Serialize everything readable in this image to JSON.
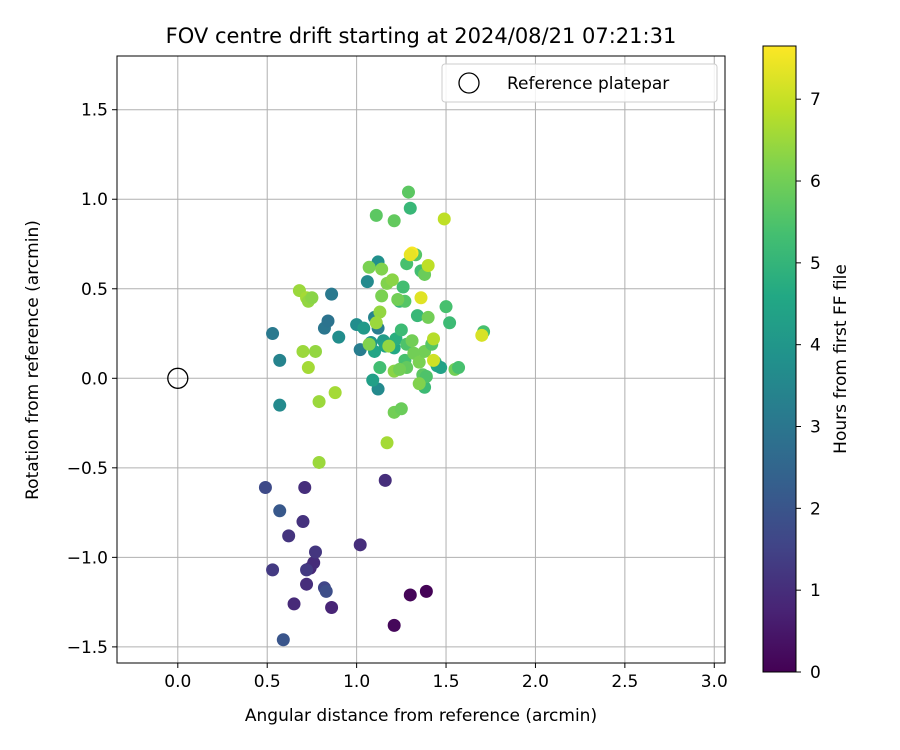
{
  "chart_data": {
    "type": "scatter",
    "title": "FOV centre drift starting at 2024/08/21 07:21:31",
    "xlabel": "Angular distance from reference (arcmin)",
    "ylabel": "Rotation from reference (arcmin)",
    "xlim": [
      -0.34,
      3.06
    ],
    "ylim": [
      -1.59,
      1.8
    ],
    "xticks": [
      0.0,
      0.5,
      1.0,
      1.5,
      2.0,
      2.5,
      3.0
    ],
    "xtick_labels": [
      "0.0",
      "0.5",
      "1.0",
      "1.5",
      "2.0",
      "2.5",
      "3.0"
    ],
    "yticks": [
      -1.5,
      -1.0,
      -0.5,
      0.0,
      0.5,
      1.0,
      1.5
    ],
    "ytick_labels": [
      "−1.5",
      "−1.0",
      "−0.5",
      "0.0",
      "0.5",
      "1.0",
      "1.5"
    ],
    "grid": true,
    "legend": {
      "position": "top-right",
      "entries": [
        "Reference platepar"
      ]
    },
    "reference": {
      "x": 0.0,
      "y": 0.0,
      "label": "Reference platepar"
    },
    "colorbar": {
      "label": "Hours from first FF file",
      "colormap": "viridis",
      "range": [
        0,
        7.65
      ],
      "ticks": [
        0,
        1,
        2,
        3,
        4,
        5,
        6,
        7
      ],
      "tick_labels": [
        "0",
        "1",
        "2",
        "3",
        "4",
        "5",
        "6",
        "7"
      ]
    },
    "points": [
      {
        "x": 1.39,
        "y": -1.19,
        "c": 0.05
      },
      {
        "x": 1.3,
        "y": -1.21,
        "c": 0.1
      },
      {
        "x": 1.21,
        "y": -1.38,
        "c": 0.15
      },
      {
        "x": 0.86,
        "y": -1.28,
        "c": 0.8
      },
      {
        "x": 0.65,
        "y": -1.26,
        "c": 0.9
      },
      {
        "x": 0.72,
        "y": -1.15,
        "c": 1.0
      },
      {
        "x": 0.74,
        "y": -1.06,
        "c": 0.85
      },
      {
        "x": 0.76,
        "y": -1.03,
        "c": 0.95
      },
      {
        "x": 0.77,
        "y": -0.97,
        "c": 1.2
      },
      {
        "x": 0.82,
        "y": -1.17,
        "c": 1.6
      },
      {
        "x": 0.83,
        "y": -1.19,
        "c": 1.8
      },
      {
        "x": 0.59,
        "y": -1.46,
        "c": 2.0
      },
      {
        "x": 1.02,
        "y": -0.93,
        "c": 1.0
      },
      {
        "x": 1.16,
        "y": -0.57,
        "c": 1.0
      },
      {
        "x": 0.71,
        "y": -0.61,
        "c": 1.0
      },
      {
        "x": 0.7,
        "y": -0.8,
        "c": 1.1
      },
      {
        "x": 0.62,
        "y": -0.88,
        "c": 1.15
      },
      {
        "x": 0.49,
        "y": -0.61,
        "c": 1.7
      },
      {
        "x": 0.57,
        "y": -0.74,
        "c": 2.1
      },
      {
        "x": 0.53,
        "y": -1.07,
        "c": 1.3
      },
      {
        "x": 0.72,
        "y": -1.07,
        "c": 1.3
      },
      {
        "x": 0.53,
        "y": 0.25,
        "c": 3.1
      },
      {
        "x": 0.57,
        "y": -0.15,
        "c": 3.6
      },
      {
        "x": 0.57,
        "y": 0.1,
        "c": 3.4
      },
      {
        "x": 0.82,
        "y": 0.28,
        "c": 3.0
      },
      {
        "x": 0.84,
        "y": 0.32,
        "c": 2.9
      },
      {
        "x": 0.86,
        "y": 0.47,
        "c": 3.1
      },
      {
        "x": 0.9,
        "y": 0.23,
        "c": 3.7
      },
      {
        "x": 1.0,
        "y": 0.3,
        "c": 3.7
      },
      {
        "x": 1.02,
        "y": 0.16,
        "c": 3.2
      },
      {
        "x": 1.06,
        "y": 0.54,
        "c": 3.6
      },
      {
        "x": 1.1,
        "y": 0.34,
        "c": 3.4
      },
      {
        "x": 1.12,
        "y": 0.28,
        "c": 3.2
      },
      {
        "x": 1.12,
        "y": 0.65,
        "c": 3.8
      },
      {
        "x": 1.12,
        "y": -0.06,
        "c": 3.6
      },
      {
        "x": 1.09,
        "y": -0.01,
        "c": 4.3
      },
      {
        "x": 1.08,
        "y": 0.2,
        "c": 4.0
      },
      {
        "x": 1.1,
        "y": 0.15,
        "c": 4.5
      },
      {
        "x": 1.13,
        "y": 0.06,
        "c": 5.3
      },
      {
        "x": 1.04,
        "y": 0.28,
        "c": 4.1
      },
      {
        "x": 1.15,
        "y": 0.21,
        "c": 4.2
      },
      {
        "x": 1.16,
        "y": 0.18,
        "c": 4.4
      },
      {
        "x": 1.21,
        "y": 0.17,
        "c": 4.6
      },
      {
        "x": 1.22,
        "y": 0.22,
        "c": 4.8
      },
      {
        "x": 1.24,
        "y": 0.43,
        "c": 5.0
      },
      {
        "x": 1.25,
        "y": 0.27,
        "c": 5.2
      },
      {
        "x": 1.26,
        "y": 0.51,
        "c": 5.3
      },
      {
        "x": 1.27,
        "y": 0.1,
        "c": 5.4
      },
      {
        "x": 1.27,
        "y": 0.43,
        "c": 5.6
      },
      {
        "x": 1.28,
        "y": 0.06,
        "c": 5.8
      },
      {
        "x": 1.28,
        "y": 0.19,
        "c": 5.5
      },
      {
        "x": 1.29,
        "y": 1.04,
        "c": 5.7
      },
      {
        "x": 1.3,
        "y": 0.95,
        "c": 5.1
      },
      {
        "x": 1.28,
        "y": 0.64,
        "c": 5.4
      },
      {
        "x": 1.31,
        "y": 0.21,
        "c": 6.0
      },
      {
        "x": 1.32,
        "y": 0.14,
        "c": 6.0
      },
      {
        "x": 1.33,
        "y": 0.69,
        "c": 5.6
      },
      {
        "x": 1.34,
        "y": 0.35,
        "c": 5.1
      },
      {
        "x": 1.35,
        "y": 0.09,
        "c": 6.1
      },
      {
        "x": 1.36,
        "y": 0.6,
        "c": 5.3
      },
      {
        "x": 1.37,
        "y": 0.02,
        "c": 5.7
      },
      {
        "x": 1.38,
        "y": 0.15,
        "c": 6.0
      },
      {
        "x": 1.38,
        "y": 0.58,
        "c": 5.9
      },
      {
        "x": 1.38,
        "y": -0.05,
        "c": 5.2
      },
      {
        "x": 1.39,
        "y": 0.01,
        "c": 5.5
      },
      {
        "x": 1.4,
        "y": 0.34,
        "c": 6.0
      },
      {
        "x": 1.42,
        "y": 0.19,
        "c": 5.6
      },
      {
        "x": 1.44,
        "y": 0.09,
        "c": 5.3
      },
      {
        "x": 1.45,
        "y": 0.07,
        "c": 4.6
      },
      {
        "x": 1.47,
        "y": 0.06,
        "c": 4.4
      },
      {
        "x": 1.5,
        "y": 0.4,
        "c": 5.4
      },
      {
        "x": 1.52,
        "y": 0.31,
        "c": 5.2
      },
      {
        "x": 1.55,
        "y": 0.05,
        "c": 6.0
      },
      {
        "x": 1.57,
        "y": 0.06,
        "c": 5.4
      },
      {
        "x": 1.71,
        "y": 0.26,
        "c": 5.4
      },
      {
        "x": 1.11,
        "y": 0.91,
        "c": 5.7
      },
      {
        "x": 1.21,
        "y": 0.88,
        "c": 5.8
      },
      {
        "x": 1.07,
        "y": 0.62,
        "c": 6.1
      },
      {
        "x": 1.14,
        "y": 0.61,
        "c": 6.2
      },
      {
        "x": 1.17,
        "y": 0.53,
        "c": 6.2
      },
      {
        "x": 1.2,
        "y": 0.55,
        "c": 6.3
      },
      {
        "x": 1.23,
        "y": 0.44,
        "c": 6.0
      },
      {
        "x": 1.14,
        "y": 0.46,
        "c": 6.1
      },
      {
        "x": 1.13,
        "y": 0.37,
        "c": 6.4
      },
      {
        "x": 1.11,
        "y": 0.31,
        "c": 6.5
      },
      {
        "x": 1.07,
        "y": 0.19,
        "c": 6.2
      },
      {
        "x": 1.18,
        "y": 0.18,
        "c": 6.4
      },
      {
        "x": 1.21,
        "y": 0.04,
        "c": 6.3
      },
      {
        "x": 1.24,
        "y": 0.05,
        "c": 6.0
      },
      {
        "x": 1.21,
        "y": -0.19,
        "c": 6.0
      },
      {
        "x": 1.25,
        "y": -0.17,
        "c": 5.9
      },
      {
        "x": 1.35,
        "y": -0.03,
        "c": 6.2
      },
      {
        "x": 1.43,
        "y": 0.22,
        "c": 6.8
      },
      {
        "x": 1.4,
        "y": 0.63,
        "c": 6.9
      },
      {
        "x": 1.36,
        "y": 0.45,
        "c": 7.3
      },
      {
        "x": 1.31,
        "y": 0.7,
        "c": 7.6
      },
      {
        "x": 1.3,
        "y": 0.69,
        "c": 7.4
      },
      {
        "x": 1.43,
        "y": 0.1,
        "c": 7.1
      },
      {
        "x": 1.49,
        "y": 0.89,
        "c": 6.9
      },
      {
        "x": 1.7,
        "y": 0.24,
        "c": 7.2
      },
      {
        "x": 0.68,
        "y": 0.49,
        "c": 6.5
      },
      {
        "x": 0.72,
        "y": 0.45,
        "c": 6.6
      },
      {
        "x": 0.73,
        "y": 0.43,
        "c": 6.4
      },
      {
        "x": 0.75,
        "y": 0.45,
        "c": 6.3
      },
      {
        "x": 0.7,
        "y": 0.15,
        "c": 6.5
      },
      {
        "x": 0.73,
        "y": 0.06,
        "c": 6.6
      },
      {
        "x": 0.77,
        "y": 0.15,
        "c": 6.4
      },
      {
        "x": 0.79,
        "y": -0.13,
        "c": 6.5
      },
      {
        "x": 0.79,
        "y": -0.47,
        "c": 6.5
      },
      {
        "x": 0.88,
        "y": -0.08,
        "c": 6.6
      },
      {
        "x": 1.17,
        "y": -0.36,
        "c": 6.6
      }
    ]
  }
}
